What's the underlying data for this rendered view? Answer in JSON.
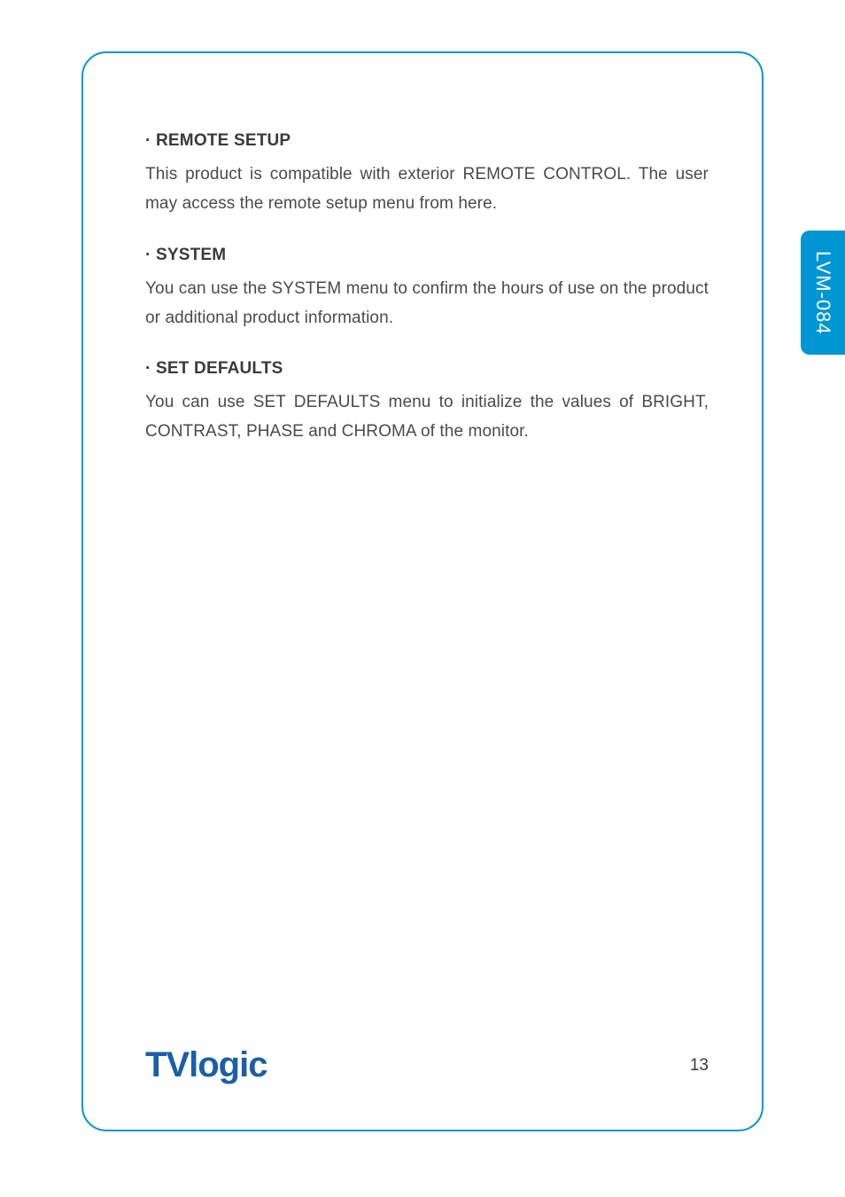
{
  "colors": {
    "frame_border": "#0096d6",
    "tab_bg": "#0096d6",
    "tab_text": "#ffffff",
    "heading_text": "#3a3a3a",
    "body_text": "#4a4a4a",
    "logo_color": "#1a5fa8",
    "page_bg": "#ffffff"
  },
  "side_tab": {
    "label": "LVM-084"
  },
  "sections": [
    {
      "heading": "· REMOTE SETUP",
      "body": "This product is compatible with exterior REMOTE CONTROL. The user may access the remote setup menu from here."
    },
    {
      "heading": "· SYSTEM",
      "body": "You can use the SYSTEM menu to confirm the hours of use on the product or additional product information."
    },
    {
      "heading": "· SET DEFAULTS",
      "body": "You can use SET DEFAULTS menu to initialize the values of BRIGHT, CONTRAST, PHASE and CHROMA of the monitor."
    }
  ],
  "footer": {
    "logo_text": "TVlogic",
    "page_number": "13"
  }
}
